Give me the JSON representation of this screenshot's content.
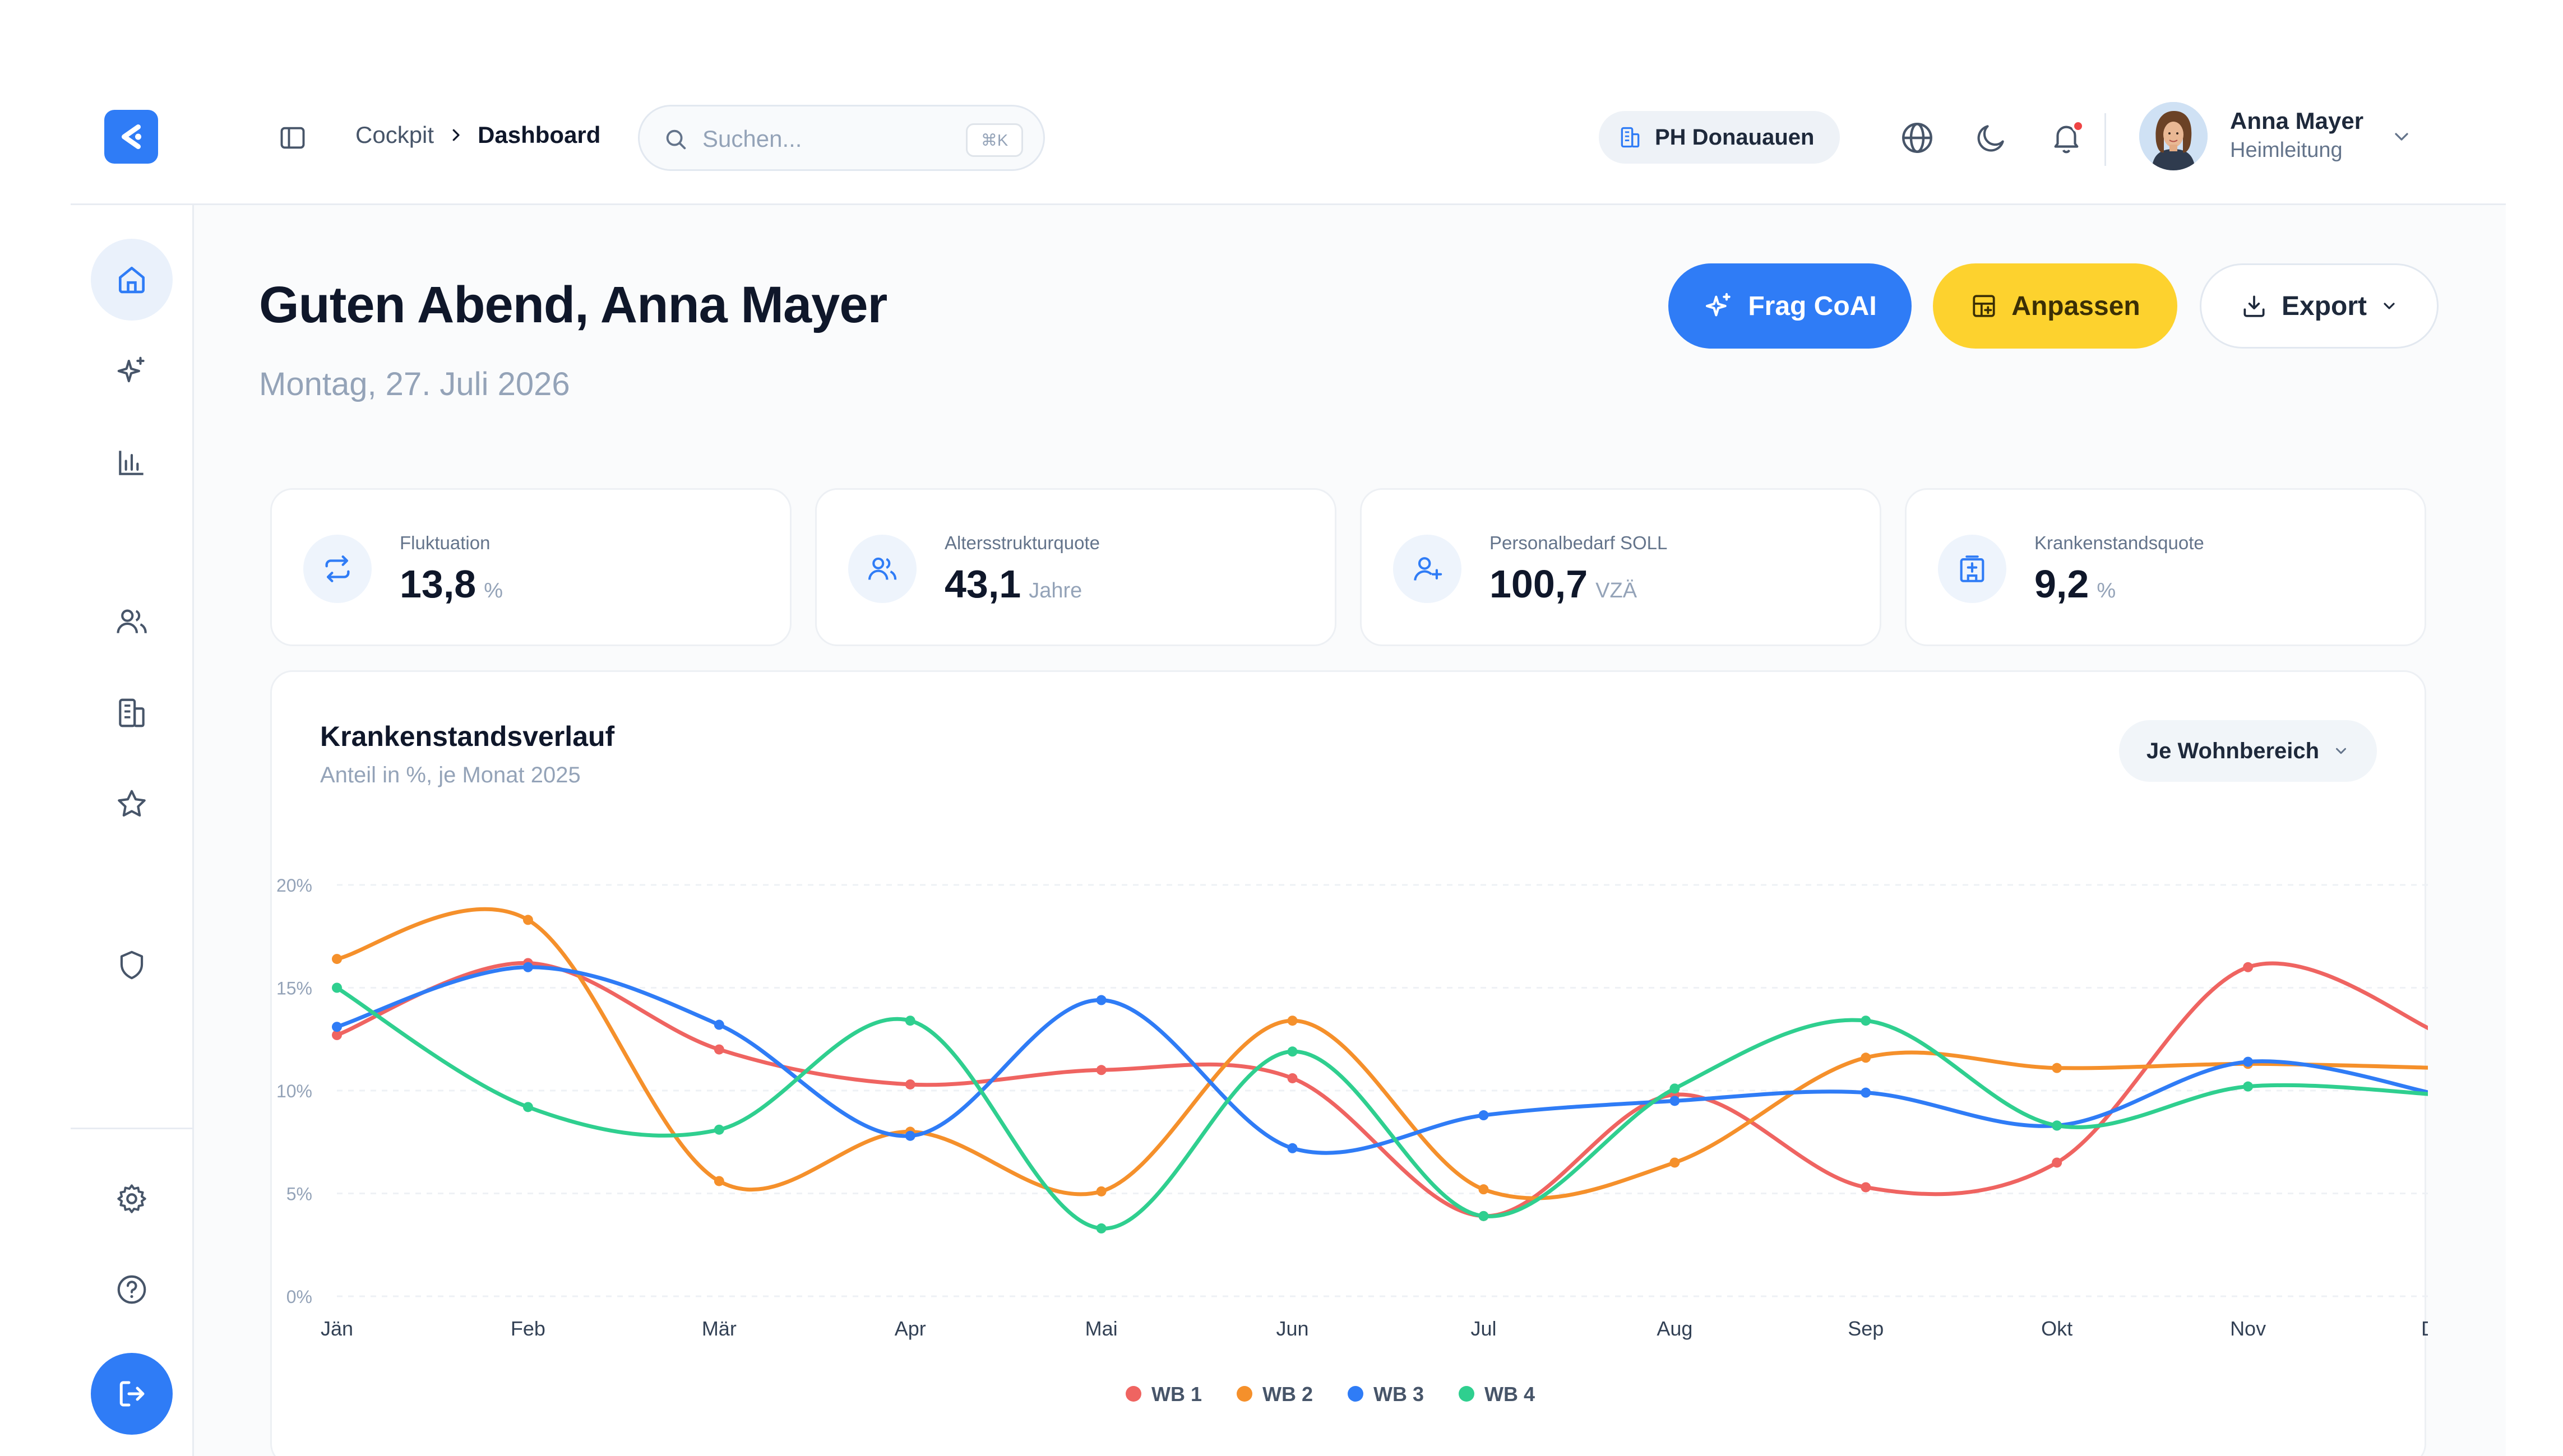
{
  "header": {
    "breadcrumb": [
      "Cockpit",
      "Dashboard"
    ],
    "search": {
      "placeholder": "Suchen...",
      "shortcut": "⌘K"
    },
    "facility": "PH Donauauen",
    "user": {
      "name": "Anna Mayer",
      "role": "Heimleitung"
    }
  },
  "sidebar": {
    "items": [
      "home-icon",
      "sparkles-icon",
      "bar-chart-icon",
      "users-icon",
      "building-icon",
      "star-icon",
      "shield-icon"
    ],
    "bottom": [
      "settings-icon",
      "help-icon",
      "logout-icon"
    ]
  },
  "main": {
    "greeting": "Guten Abend, Anna Mayer",
    "date": "Montag, 27. Juli 2026",
    "actions": {
      "coai": "Frag CoAI",
      "customize": "Anpassen",
      "export": "Export"
    }
  },
  "kpis": [
    {
      "label": "Fluktuation",
      "value": "13,8",
      "unit": "%",
      "icon": "repeat-icon"
    },
    {
      "label": "Altersstrukturquote",
      "value": "43,1",
      "unit": "Jahre",
      "icon": "users-icon"
    },
    {
      "label": "Personalbedarf SOLL",
      "value": "100,7",
      "unit": "VZÄ",
      "icon": "user-plus-icon"
    },
    {
      "label": "Krankenstandsquote",
      "value": "9,2",
      "unit": "%",
      "icon": "hospital-icon"
    }
  ],
  "chart": {
    "title": "Krankenstandsverlauf",
    "subtitle": "Anteil in %, je Monat 2025",
    "filter": "Je Wohnbereich"
  },
  "chart_data": {
    "type": "line",
    "categories": [
      "Jän",
      "Feb",
      "Mär",
      "Apr",
      "Mai",
      "Jun",
      "Jul",
      "Aug",
      "Sep",
      "Okt",
      "Nov",
      "Dez"
    ],
    "ylim": [
      0,
      20
    ],
    "yticks": [
      "0%",
      "5%",
      "10%",
      "15%",
      "20%"
    ],
    "grid": true,
    "legend": "bottom-center",
    "series": [
      {
        "name": "WB 1",
        "color": "#ef6461",
        "values": [
          12.7,
          16.2,
          12.0,
          10.3,
          11.0,
          10.6,
          3.9,
          9.8,
          5.3,
          6.5,
          16.0,
          12.8
        ]
      },
      {
        "name": "WB 2",
        "color": "#f5902b",
        "values": [
          16.4,
          18.3,
          5.6,
          8.0,
          5.1,
          13.4,
          5.2,
          6.5,
          11.6,
          11.1,
          11.3,
          11.1
        ]
      },
      {
        "name": "WB 3",
        "color": "#2f7cf6",
        "values": [
          13.1,
          16.0,
          13.2,
          7.8,
          14.4,
          7.2,
          8.8,
          9.5,
          9.9,
          8.3,
          11.4,
          9.8
        ]
      },
      {
        "name": "WB 4",
        "color": "#2fcf8f",
        "values": [
          15.0,
          9.2,
          8.1,
          13.4,
          3.3,
          11.9,
          3.9,
          10.1,
          13.4,
          8.3,
          10.2,
          9.8
        ]
      }
    ]
  }
}
